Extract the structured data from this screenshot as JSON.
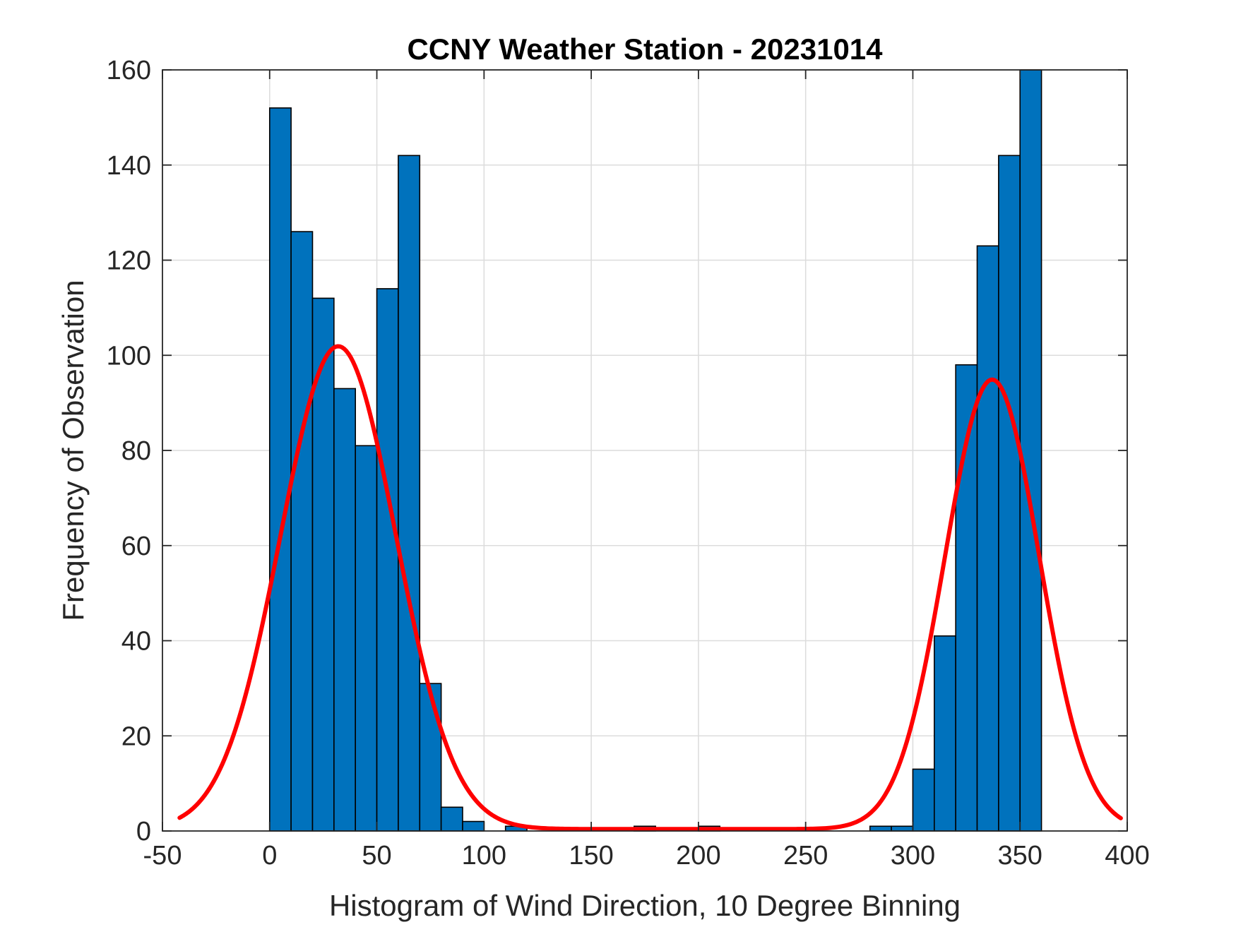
{
  "chart_data": {
    "type": "bar",
    "title": "CCNY Weather Station - 20231014",
    "xlabel": "Histogram of Wind Direction, 10 Degree Binning",
    "ylabel": "Frequency of Observation",
    "xlim": [
      -50,
      400
    ],
    "ylim": [
      0,
      160
    ],
    "xticks": [
      -50,
      0,
      50,
      100,
      150,
      200,
      250,
      300,
      350,
      400
    ],
    "yticks": [
      0,
      20,
      40,
      60,
      80,
      100,
      120,
      140,
      160
    ],
    "grid": true,
    "bin_width": 10,
    "bins": [
      {
        "start": 0,
        "count": 152
      },
      {
        "start": 10,
        "count": 126
      },
      {
        "start": 20,
        "count": 112
      },
      {
        "start": 30,
        "count": 93
      },
      {
        "start": 40,
        "count": 81
      },
      {
        "start": 50,
        "count": 114
      },
      {
        "start": 60,
        "count": 142
      },
      {
        "start": 70,
        "count": 31
      },
      {
        "start": 80,
        "count": 5
      },
      {
        "start": 90,
        "count": 2
      },
      {
        "start": 100,
        "count": 0
      },
      {
        "start": 110,
        "count": 1
      },
      {
        "start": 120,
        "count": 0
      },
      {
        "start": 130,
        "count": 0
      },
      {
        "start": 140,
        "count": 0
      },
      {
        "start": 150,
        "count": 0
      },
      {
        "start": 160,
        "count": 0
      },
      {
        "start": 170,
        "count": 1
      },
      {
        "start": 180,
        "count": 0
      },
      {
        "start": 190,
        "count": 0
      },
      {
        "start": 200,
        "count": 1
      },
      {
        "start": 210,
        "count": 0
      },
      {
        "start": 220,
        "count": 0
      },
      {
        "start": 230,
        "count": 0
      },
      {
        "start": 240,
        "count": 0
      },
      {
        "start": 250,
        "count": 0
      },
      {
        "start": 260,
        "count": 0
      },
      {
        "start": 270,
        "count": 0
      },
      {
        "start": 280,
        "count": 1
      },
      {
        "start": 290,
        "count": 1
      },
      {
        "start": 300,
        "count": 13
      },
      {
        "start": 310,
        "count": 41
      },
      {
        "start": 320,
        "count": 98
      },
      {
        "start": 330,
        "count": 123
      },
      {
        "start": 340,
        "count": 142
      },
      {
        "start": 350,
        "count": 160
      }
    ],
    "fit_curve": {
      "name": "fit",
      "color": "#ff0000",
      "components": [
        {
          "amplitude": 101.5,
          "mean": 32,
          "sigma": 27
        },
        {
          "amplitude": 94.5,
          "mean": 337,
          "sigma": 22
        }
      ],
      "baseline": 0.4,
      "x_range": [
        -42,
        397
      ]
    },
    "bar_color": "#0072bd"
  }
}
